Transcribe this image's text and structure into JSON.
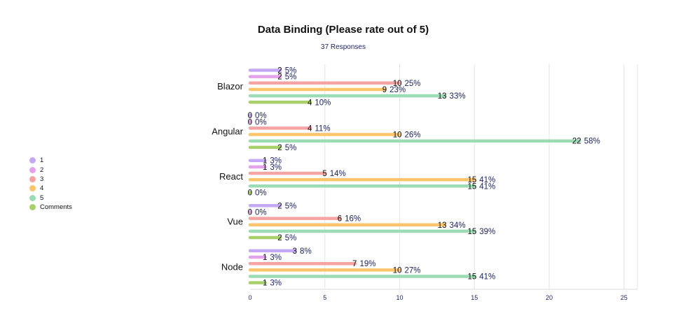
{
  "chart_data": {
    "type": "bar",
    "orientation": "horizontal",
    "title": "Data Binding (Please rate out of 5)",
    "subtitle": "37 Responses",
    "categories": [
      "Blazor",
      "Angular",
      "React",
      "Vue",
      "Node"
    ],
    "series": [
      {
        "name": "1",
        "color": "#c5a8f5",
        "values": [
          2,
          0,
          1,
          2,
          3
        ],
        "labels": [
          "2  5%",
          "0 0%",
          "1  3%",
          "2  5%",
          "3  8%"
        ]
      },
      {
        "name": "2",
        "color": "#e3a3ea",
        "values": [
          2,
          0,
          1,
          0,
          1
        ],
        "labels": [
          "2  5%",
          "0 0%",
          "1  3%",
          "0 0%",
          "1  3%"
        ]
      },
      {
        "name": "3",
        "color": "#f5a3a3",
        "values": [
          10,
          4,
          5,
          6,
          7
        ],
        "labels": [
          "10  25%",
          "4  11%",
          "5  14%",
          "6  16%",
          "7  19%"
        ]
      },
      {
        "name": "4",
        "color": "#fcc56b",
        "values": [
          9,
          10,
          15,
          13,
          10
        ],
        "labels": [
          "9  23%",
          "10  26%",
          "15  41%",
          "13  34%",
          "10  27%"
        ]
      },
      {
        "name": "5",
        "color": "#9cdcb5",
        "values": [
          13,
          22,
          15,
          15,
          15
        ],
        "labels": [
          "13  33%",
          "22  58%",
          "15  41%",
          "15  39%",
          "15  41%"
        ]
      },
      {
        "name": "Comments",
        "color": "#a9cf6a",
        "values": [
          4,
          2,
          0,
          2,
          1
        ],
        "labels": [
          "4  10%",
          "2  5%",
          "0 0%",
          "2  5%",
          "1  3%"
        ]
      }
    ],
    "xlim": [
      0,
      26
    ],
    "xticks": [
      0,
      5,
      10,
      15,
      20,
      25
    ],
    "grid": true,
    "legend": "left"
  }
}
